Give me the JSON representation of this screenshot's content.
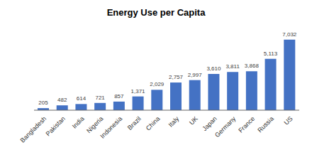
{
  "chart_data": {
    "type": "bar",
    "title": "Energy Use per Capita",
    "categories": [
      "Bangladesh",
      "Pakistan",
      "India",
      "Nigeria",
      "Indonesia",
      "Brazil",
      "China",
      "Italy",
      "UK",
      "Japan",
      "Germany",
      "France",
      "Russia",
      "US"
    ],
    "values": [
      205,
      482,
      614,
      721,
      857,
      1371,
      2029,
      2757,
      2997,
      3610,
      3811,
      3868,
      5113,
      7032
    ],
    "value_labels": [
      "205",
      "482",
      "614",
      "721",
      "857",
      "1,371",
      "2,029",
      "2,757",
      "2,997",
      "3,610",
      "3,811",
      "3,868",
      "5,113",
      "7,032"
    ],
    "color": "#4472C4",
    "ylim": [
      0,
      8000
    ],
    "data_labels": true,
    "tick_labels": "x",
    "grid": false
  }
}
